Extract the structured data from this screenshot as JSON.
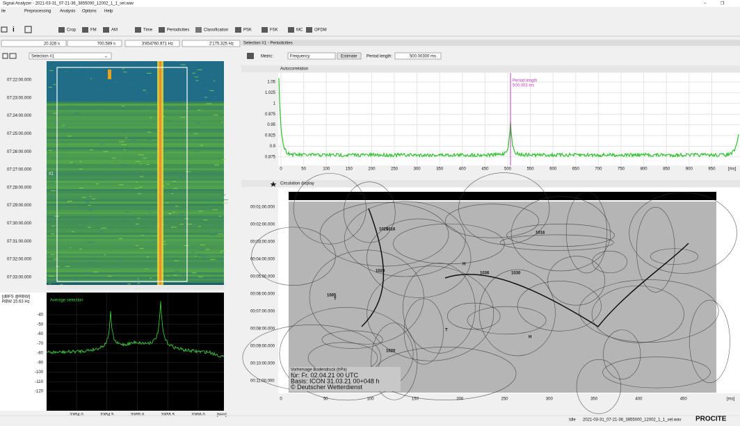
{
  "window": {
    "title": "Signal Analyzer - 2021-03-31_07-21-36_3855000_12002_1_1_sel.wav",
    "menu": [
      "ile",
      "Preprocessing",
      "Analysis",
      "Options",
      "Help"
    ]
  },
  "toolbar": [
    "Crop",
    "FM",
    "AM",
    "Time",
    "Periodicities",
    "Classification",
    "PSK",
    "FSK",
    "MC",
    "OFDM"
  ],
  "left": {
    "fields": [
      "20.326 s",
      "700.589 s",
      "3'854760.971 Hz",
      "2'175.325 Hz"
    ],
    "selection": "Selection #1",
    "spectrogram": {
      "marker": "#1",
      "times": [
        "07:22:00.000",
        "07:23:00.000",
        "07:24:00.000",
        "07:25:00.000",
        "07:26:00.000",
        "07:27:00.000",
        "07:28:00.000",
        "07:29:00.000",
        "07:30:00.000",
        "07:31:00.000",
        "07:32:00.000",
        "07:33:00.000"
      ]
    },
    "spectrum": {
      "unit": "[dBFS @RBW]",
      "rbw": "RBW 15.63 Hz",
      "legend": "Average selection",
      "yticks": [
        "-40",
        "-50",
        "-60",
        "-70",
        "-80",
        "-90",
        "-100",
        "-110",
        "-120"
      ],
      "xticks": [
        "3'854.0",
        "3'854.5",
        "3'855.0",
        "3'855.5",
        "3'856.0"
      ],
      "xunit": "[kHz]"
    }
  },
  "right": {
    "tab": "Selection #1 - Periodicities",
    "metric_label": "Metric:",
    "metric": "Frequency",
    "estimate": "Estimate",
    "period_label": "Period length:",
    "period": "500.00300 ms",
    "autocorrelation": {
      "title": "Autocorrelation",
      "annotation": [
        "Period length",
        "500.003 ms"
      ],
      "yticks": [
        "1.05",
        "1.025",
        "1",
        "0.975",
        "0.95",
        "0.925",
        "0.9",
        "0.875"
      ],
      "xticks": [
        "0",
        "50",
        "100",
        "150",
        "200",
        "250",
        "300",
        "350",
        "400",
        "450",
        "500",
        "550",
        "600",
        "650",
        "700",
        "750",
        "800",
        "850",
        "900",
        "950"
      ],
      "xunit": "[ms]"
    },
    "circulation": {
      "title": "Circulation display",
      "yticks": [
        "00:01:00.000",
        "00:02:00.000",
        "00:03:00.000",
        "00:04:00.000",
        "00:05:00.000",
        "00:06:00.000",
        "00:07:00.000",
        "00:08:00.000",
        "00:09:00.000",
        "00:10:00.000",
        "00:11:00.000"
      ],
      "xticks": [
        "0",
        "50",
        "100",
        "150",
        "200",
        "250",
        "300",
        "350",
        "400",
        "450"
      ],
      "xunit": "[ms]",
      "map_caption": [
        "Vorhersage Bodendruck (hPa)",
        "für:  Fr. 02.04.21  00 UTC",
        "Basis: ICON  31.03.21 00+048 h",
        "© Deutscher Wetterdienst"
      ],
      "map_labels": [
        "1016",
        "1020",
        "1025",
        "1030",
        "1036",
        "1005",
        "H",
        "T",
        "H",
        "T",
        "1016",
        "1020"
      ]
    }
  },
  "status": {
    "state": "Idle",
    "file": "2021-03-31_07-21-36_3855000_12002_1_1_sel.wav",
    "brand": "PROCITE"
  }
}
